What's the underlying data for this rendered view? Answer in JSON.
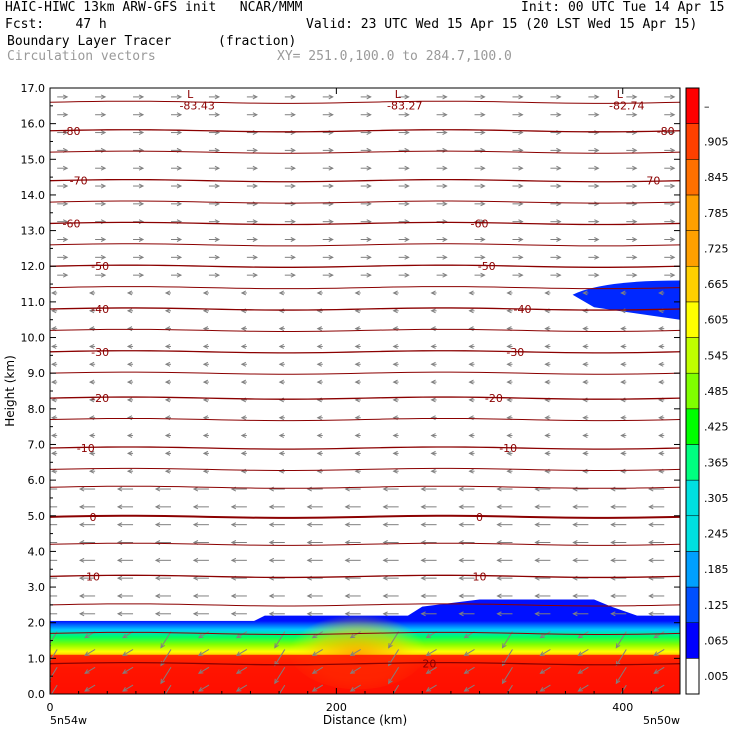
{
  "header": {
    "line1_left": "HAIC-HIWC 13km ARW-GFS init   NCAR/MMM",
    "line1_right": "Init: 00 UTC Tue 14 Apr 15",
    "line2_left": "Fcst:    47 h",
    "line2_right": "Valid: 23 UTC Wed 15 Apr 15 (20 LST Wed 15 Apr 15)",
    "line3_field": "Boundary Layer Tracer",
    "line3_units": "(fraction)",
    "line4_field": "Circulation vectors",
    "line4_xy": "XY= 251.0,100.0 to 284.7,100.0"
  },
  "colors": {
    "isotherm": "#8b0000",
    "vector": "#808080",
    "colorbar": [
      "#ffffff",
      "#0000ff",
      "#0050ff",
      "#00a0ff",
      "#00e0e0",
      "#00ff80",
      "#00ff00",
      "#80ff00",
      "#c0ff00",
      "#ffff00",
      "#ffd000",
      "#ffa000",
      "#ff7000",
      "#ff4000",
      "#ff0000"
    ]
  },
  "chart_data": {
    "type": "heatmap",
    "xlabel": "Distance (km)",
    "ylabel": "Height (km)",
    "xlim": [
      0,
      440
    ],
    "ylim": [
      0.0,
      17.0
    ],
    "x_ticks": [
      0,
      200,
      400
    ],
    "y_ticks": [
      "0.0",
      "1.0",
      "2.0",
      "3.0",
      "4.0",
      "5.0",
      "6.0",
      "7.0",
      "8.0",
      "9.0",
      "10.0",
      "11.0",
      "12.0",
      "13.0",
      "14.0",
      "15.0",
      "16.0",
      "17.0"
    ],
    "x_corner_left": "5n54w",
    "x_corner_right": "5n50w",
    "colorbar_labels": [
      ".005",
      ".065",
      ".125",
      ".185",
      ".245",
      ".305",
      ".365",
      ".425",
      ".485",
      ".545",
      ".605",
      ".665",
      ".725",
      ".785",
      ".845",
      ".905",
      "–"
    ],
    "isotherms": [
      {
        "label": "-80",
        "height": 15.8,
        "label_x": [
          15,
          430
        ]
      },
      {
        "label": "-70",
        "height": 14.4,
        "label_x": [
          20,
          420
        ]
      },
      {
        "label": "-60",
        "height": 13.2,
        "label_x": [
          15,
          300
        ]
      },
      {
        "label": "-50",
        "height": 12.0,
        "label_x": [
          35,
          305
        ]
      },
      {
        "label": "-40",
        "height": 10.8,
        "label_x": [
          35,
          330
        ]
      },
      {
        "label": "-30",
        "height": 9.6,
        "label_x": [
          35,
          325
        ]
      },
      {
        "label": "-20",
        "height": 8.3,
        "label_x": [
          35,
          310
        ]
      },
      {
        "label": "-10",
        "height": 6.9,
        "label_x": [
          25,
          320
        ]
      },
      {
        "label": "0",
        "height": 4.97,
        "label_x": [
          30,
          300
        ]
      },
      {
        "label": "10",
        "height": 3.3,
        "label_x": [
          30,
          300
        ]
      },
      {
        "label": "20",
        "height": 0.85,
        "label_x": [
          265
        ]
      }
    ],
    "extra_isotherm_heights": [
      16.6,
      15.2,
      13.8,
      12.6,
      11.4,
      10.2,
      9.0,
      7.7,
      6.3,
      5.8,
      4.2,
      2.5,
      1.7
    ],
    "lows": [
      {
        "symbol": "L",
        "value": "-83.43",
        "x": 100
      },
      {
        "symbol": "L",
        "value": "-83.27",
        "x": 245
      },
      {
        "symbol": "L",
        "value": "-82.74",
        "x": 400
      }
    ],
    "boundary_layer_top": [
      [
        0,
        1.95
      ],
      [
        60,
        2.0
      ],
      [
        140,
        2.0
      ],
      [
        150,
        2.2
      ],
      [
        230,
        2.2
      ],
      [
        250,
        2.2
      ],
      [
        260,
        2.45
      ],
      [
        300,
        2.65
      ],
      [
        380,
        2.65
      ],
      [
        392,
        2.45
      ],
      [
        410,
        2.2
      ],
      [
        440,
        2.2
      ]
    ],
    "boundary_layer_core": {
      "full_tracer_top": 1.1,
      "yellow_bulge_km": [
        180,
        250
      ],
      "yellow_bulge_top": 1.8
    },
    "upper_patch": {
      "x_from": 365,
      "x_to": 440,
      "top": 11.6,
      "bottom": 10.5,
      "tip_height": 11.2
    }
  }
}
